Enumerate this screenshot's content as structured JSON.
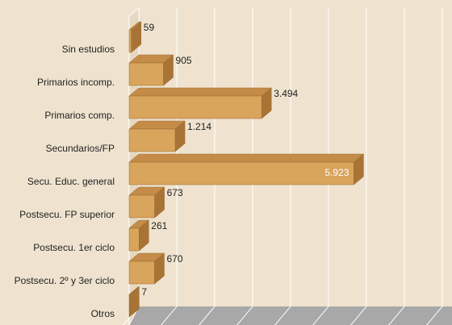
{
  "chart_data": {
    "type": "bar3d_horizontal",
    "categories": [
      "Sin estudios",
      "Primarios incomp.",
      "Primarios comp.",
      "Secundarios/FP",
      "Secu. Educ. general",
      "Postsecu. FP superior",
      "Postsecu.  1er ciclo",
      "Postsecu. 2º y 3er ciclo",
      "Otros"
    ],
    "values": [
      59,
      905,
      3494,
      1214,
      5923,
      673,
      261,
      670,
      7
    ],
    "value_labels": [
      "59",
      "905",
      "3.494",
      "1.214",
      "5.923",
      "673",
      "261",
      "670",
      "7"
    ],
    "color": "#d9a45c",
    "xlim": [
      0,
      8000
    ],
    "xticks": [
      0,
      1000,
      2000,
      3000,
      4000,
      5000,
      6000,
      7000,
      8000
    ],
    "grid": true
  }
}
